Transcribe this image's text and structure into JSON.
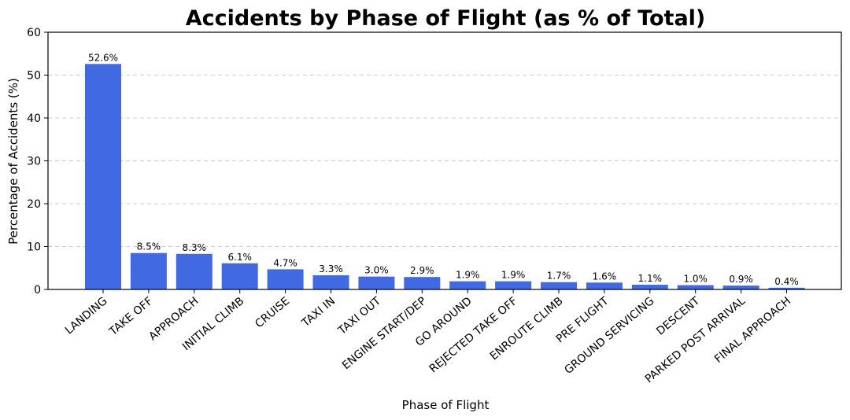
{
  "chart_data": {
    "type": "bar",
    "title": "Accidents by Phase of Flight (as % of Total)",
    "xlabel": "Phase of Flight",
    "ylabel": "Percentage of Accidents (%)",
    "ylim": [
      0,
      60
    ],
    "yticks": [
      0,
      10,
      20,
      30,
      40,
      50,
      60
    ],
    "grid": "y-dashed",
    "bar_color": "#4169e1",
    "categories": [
      "LANDING",
      "TAKE OFF",
      "APPROACH",
      "INITIAL CLIMB",
      "CRUISE",
      "TAXI IN",
      "TAXI OUT",
      "ENGINE START/DEP",
      "GO AROUND",
      "REJECTED TAKE OFF",
      "ENROUTE CLIMB",
      "PRE FLIGHT",
      "GROUND SERVICING",
      "DESCENT",
      "PARKED POST ARRIVAL",
      "FINAL APPROACH"
    ],
    "values": [
      52.6,
      8.5,
      8.3,
      6.1,
      4.7,
      3.3,
      3.0,
      2.9,
      1.9,
      1.9,
      1.7,
      1.6,
      1.1,
      1.0,
      0.9,
      0.4
    ],
    "data_labels": [
      "52.6%",
      "8.5%",
      "8.3%",
      "6.1%",
      "4.7%",
      "3.3%",
      "3.0%",
      "2.9%",
      "1.9%",
      "1.9%",
      "1.7%",
      "1.6%",
      "1.1%",
      "1.0%",
      "0.9%",
      "0.4%"
    ]
  }
}
